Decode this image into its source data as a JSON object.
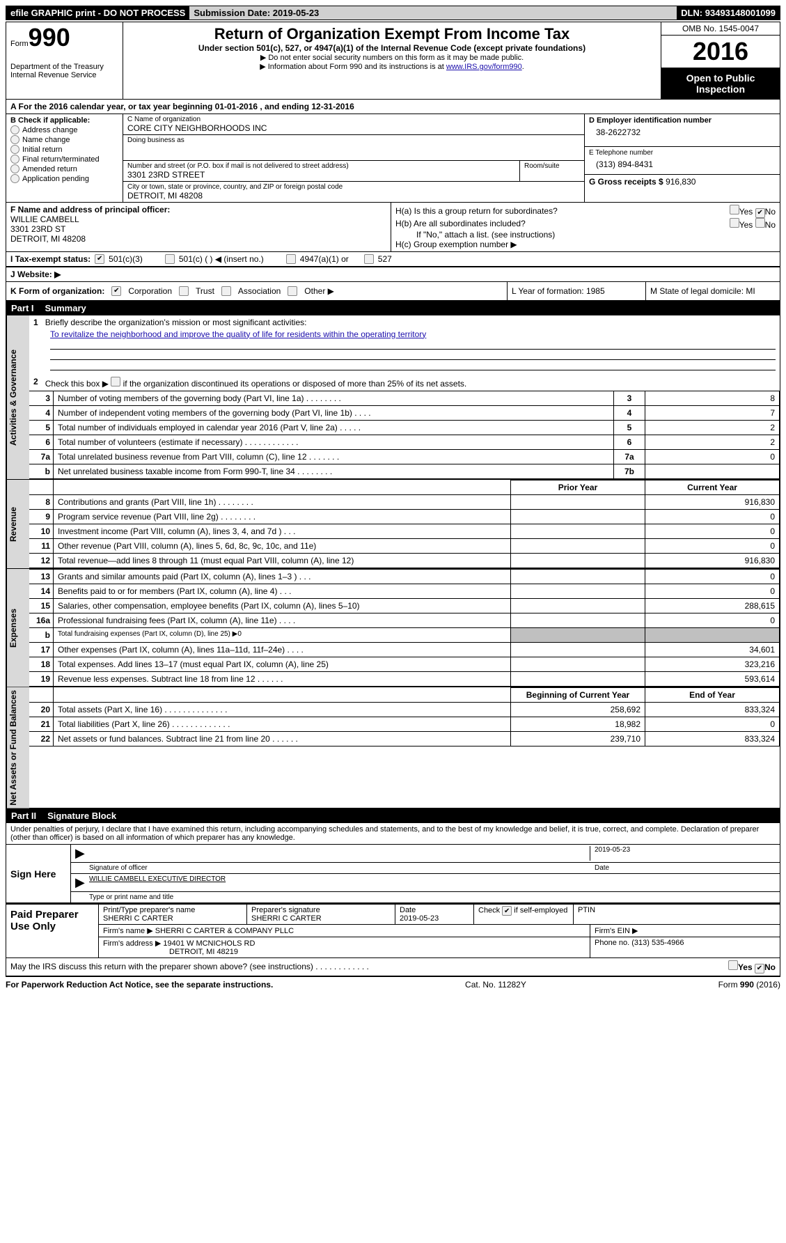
{
  "topbar": {
    "efile": "efile GRAPHIC print - DO NOT PROCESS",
    "submission_label": "Submission Date:",
    "submission_date": "2019-05-23",
    "dln_label": "DLN:",
    "dln": "93493148001099"
  },
  "header": {
    "form_label": "Form",
    "form_number": "990",
    "dept1": "Department of the Treasury",
    "dept2": "Internal Revenue Service",
    "title": "Return of Organization Exempt From Income Tax",
    "sub": "Under section 501(c), 527, or 4947(a)(1) of the Internal Revenue Code (except private foundations)",
    "note1": "▶ Do not enter social security numbers on this form as it may be made public.",
    "note2_pre": "▶ Information about Form 990 and its instructions is at ",
    "note2_link": "www.IRS.gov/form990",
    "omb": "OMB No. 1545-0047",
    "year": "2016",
    "open": "Open to Public Inspection"
  },
  "sectionA": {
    "text": "A   For the 2016 calendar year, or tax year beginning 01-01-2016   , and ending 12-31-2016"
  },
  "colB": {
    "label": "B Check if applicable:",
    "items": [
      "Address change",
      "Name change",
      "Initial return",
      "Final return/terminated",
      "Amended return",
      "Application pending"
    ]
  },
  "colC": {
    "name_label": "C Name of organization",
    "name": "CORE CITY NEIGHBORHOODS INC",
    "dba_label": "Doing business as",
    "addr_label": "Number and street (or P.O. box if mail is not delivered to street address)",
    "room_label": "Room/suite",
    "addr": "3301 23RD STREET",
    "city_label": "City or town, state or province, country, and ZIP or foreign postal code",
    "city": "DETROIT, MI  48208"
  },
  "colD": {
    "ein_label": "D Employer identification number",
    "ein": "38-2622732",
    "tel_label": "E Telephone number",
    "tel": "(313) 894-8431",
    "gross_label": "G Gross receipts $",
    "gross": "916,830"
  },
  "rowF": {
    "label": "F Name and address of principal officer:",
    "name": "WILLIE CAMBELL",
    "addr1": "3301 23RD ST",
    "addr2": "DETROIT, MI  48208"
  },
  "rowH": {
    "ha": "H(a) Is this a group return for subordinates?",
    "hb": "H(b) Are all subordinates included?",
    "hnote": "If \"No,\" attach a list. (see instructions)",
    "hc": "H(c) Group exemption number ▶",
    "yes": "Yes",
    "no": "No"
  },
  "rowI": {
    "label": "I  Tax-exempt status:",
    "opt1": "501(c)(3)",
    "opt2": "501(c) (   ) ◀ (insert no.)",
    "opt3": "4947(a)(1) or",
    "opt4": "527"
  },
  "rowJ": {
    "label": "J  Website: ▶"
  },
  "rowK": {
    "label": "K Form of organization:",
    "opts": [
      "Corporation",
      "Trust",
      "Association",
      "Other ▶"
    ],
    "L": "L Year of formation: 1985",
    "M": "M State of legal domicile: MI"
  },
  "part1": {
    "header_num": "Part I",
    "header_title": "Summary",
    "line1": "Briefly describe the organization's mission or most significant activities:",
    "mission": "To revitalize the neighborhood and improve the quality of life for residents within the operating territory",
    "line2": "Check this box ▶        if the organization discontinued its operations or disposed of more than 25% of its net assets.",
    "tabs": {
      "gov": "Activities & Governance",
      "rev": "Revenue",
      "exp": "Expenses",
      "net": "Net Assets or Fund Balances"
    },
    "rows_gov": [
      {
        "n": "3",
        "d": "Number of voting members of the governing body (Part VI, line 1a)   .    .    .    .    .    .    .    .",
        "c": "3",
        "v": "8"
      },
      {
        "n": "4",
        "d": "Number of independent voting members of the governing body (Part VI, line 1b)    .    .    .    .",
        "c": "4",
        "v": "7"
      },
      {
        "n": "5",
        "d": "Total number of individuals employed in calendar year 2016 (Part V, line 2a)    .    .    .    .    .",
        "c": "5",
        "v": "2"
      },
      {
        "n": "6",
        "d": "Total number of volunteers (estimate if necessary)    .    .    .    .    .    .    .    .    .    .    .    .",
        "c": "6",
        "v": "2"
      },
      {
        "n": "7a",
        "d": "Total unrelated business revenue from Part VIII, column (C), line 12    .    .    .    .    .    .    .",
        "c": "7a",
        "v": "0"
      },
      {
        "n": "b",
        "d": "Net unrelated business taxable income from Form 990-T, line 34    .    .    .    .    .    .    .    .",
        "c": "7b",
        "v": ""
      }
    ],
    "col_headers": {
      "prior": "Prior Year",
      "current": "Current Year"
    },
    "rows_rev": [
      {
        "n": "8",
        "d": "Contributions and grants (Part VIII, line 1h)    .    .    .    .    .    .    .    .",
        "p": "",
        "c": "916,830"
      },
      {
        "n": "9",
        "d": "Program service revenue (Part VIII, line 2g)    .    .    .    .    .    .    .    .",
        "p": "",
        "c": "0"
      },
      {
        "n": "10",
        "d": "Investment income (Part VIII, column (A), lines 3, 4, and 7d )    .    .    .",
        "p": "",
        "c": "0"
      },
      {
        "n": "11",
        "d": "Other revenue (Part VIII, column (A), lines 5, 6d, 8c, 9c, 10c, and 11e)",
        "p": "",
        "c": "0"
      },
      {
        "n": "12",
        "d": "Total revenue—add lines 8 through 11 (must equal Part VIII, column (A), line 12)",
        "p": "",
        "c": "916,830"
      }
    ],
    "rows_exp": [
      {
        "n": "13",
        "d": "Grants and similar amounts paid (Part IX, column (A), lines 1–3 )    .    .    .",
        "p": "",
        "c": "0"
      },
      {
        "n": "14",
        "d": "Benefits paid to or for members (Part IX, column (A), line 4)    .    .    .",
        "p": "",
        "c": "0"
      },
      {
        "n": "15",
        "d": "Salaries, other compensation, employee benefits (Part IX, column (A), lines 5–10)",
        "p": "",
        "c": "288,615"
      },
      {
        "n": "16a",
        "d": "Professional fundraising fees (Part IX, column (A), line 11e)    .    .    .    .",
        "p": "",
        "c": "0"
      },
      {
        "n": "b",
        "d": "Total fundraising expenses (Part IX, column (D), line 25) ▶0",
        "p": "shade",
        "c": "shade"
      },
      {
        "n": "17",
        "d": "Other expenses (Part IX, column (A), lines 11a–11d, 11f–24e)    .    .    .    .",
        "p": "",
        "c": "34,601"
      },
      {
        "n": "18",
        "d": "Total expenses. Add lines 13–17 (must equal Part IX, column (A), line 25)",
        "p": "",
        "c": "323,216"
      },
      {
        "n": "19",
        "d": "Revenue less expenses. Subtract line 18 from line 12    .    .    .    .    .    .",
        "p": "",
        "c": "593,614"
      }
    ],
    "col_headers2": {
      "begin": "Beginning of Current Year",
      "end": "End of Year"
    },
    "rows_net": [
      {
        "n": "20",
        "d": "Total assets (Part X, line 16)    .    .    .    .    .    .    .    .    .    .    .    .    .    .",
        "p": "258,692",
        "c": "833,324"
      },
      {
        "n": "21",
        "d": "Total liabilities (Part X, line 26)    .    .    .    .    .    .    .    .    .    .    .    .    .",
        "p": "18,982",
        "c": "0"
      },
      {
        "n": "22",
        "d": "Net assets or fund balances. Subtract line 21 from line 20 .    .    .    .    .    .",
        "p": "239,710",
        "c": "833,324"
      }
    ]
  },
  "part2": {
    "header_num": "Part II",
    "header_title": "Signature Block",
    "perjury": "Under penalties of perjury, I declare that I have examined this return, including accompanying schedules and statements, and to the best of my knowledge and belief, it is true, correct, and complete. Declaration of preparer (other than officer) is based on all information of which preparer has any knowledge.",
    "sign_here": "Sign Here",
    "sig_date": "2019-05-23",
    "sig_label": "Signature of officer",
    "date_label": "Date",
    "name_title": "WILLIE CAMBELL EXECUTIVE DIRECTOR",
    "name_label": "Type or print name and title",
    "paid": "Paid Preparer Use Only",
    "prep_name_label": "Print/Type preparer's name",
    "prep_name": "SHERRI C CARTER",
    "prep_sig_label": "Preparer's signature",
    "prep_sig": "SHERRI C CARTER",
    "prep_date_label": "Date",
    "prep_date": "2019-05-23",
    "self_emp": "Check         if self-employed",
    "ptin": "PTIN",
    "firm_name_label": "Firm's name      ▶",
    "firm_name": "SHERRI C CARTER & COMPANY PLLC",
    "firm_ein": "Firm's EIN ▶",
    "firm_addr_label": "Firm's address ▶",
    "firm_addr1": "19401 W MCNICHOLS RD",
    "firm_addr2": "DETROIT, MI  48219",
    "phone_label": "Phone no.",
    "phone": "(313) 535-4966",
    "discuss": "May the IRS discuss this return with the preparer shown above? (see instructions)    .    .    .    .    .    .    .    .    .    .    .    ."
  },
  "footer": {
    "pra": "For Paperwork Reduction Act Notice, see the separate instructions.",
    "cat": "Cat. No. 11282Y",
    "form": "Form 990 (2016)"
  }
}
